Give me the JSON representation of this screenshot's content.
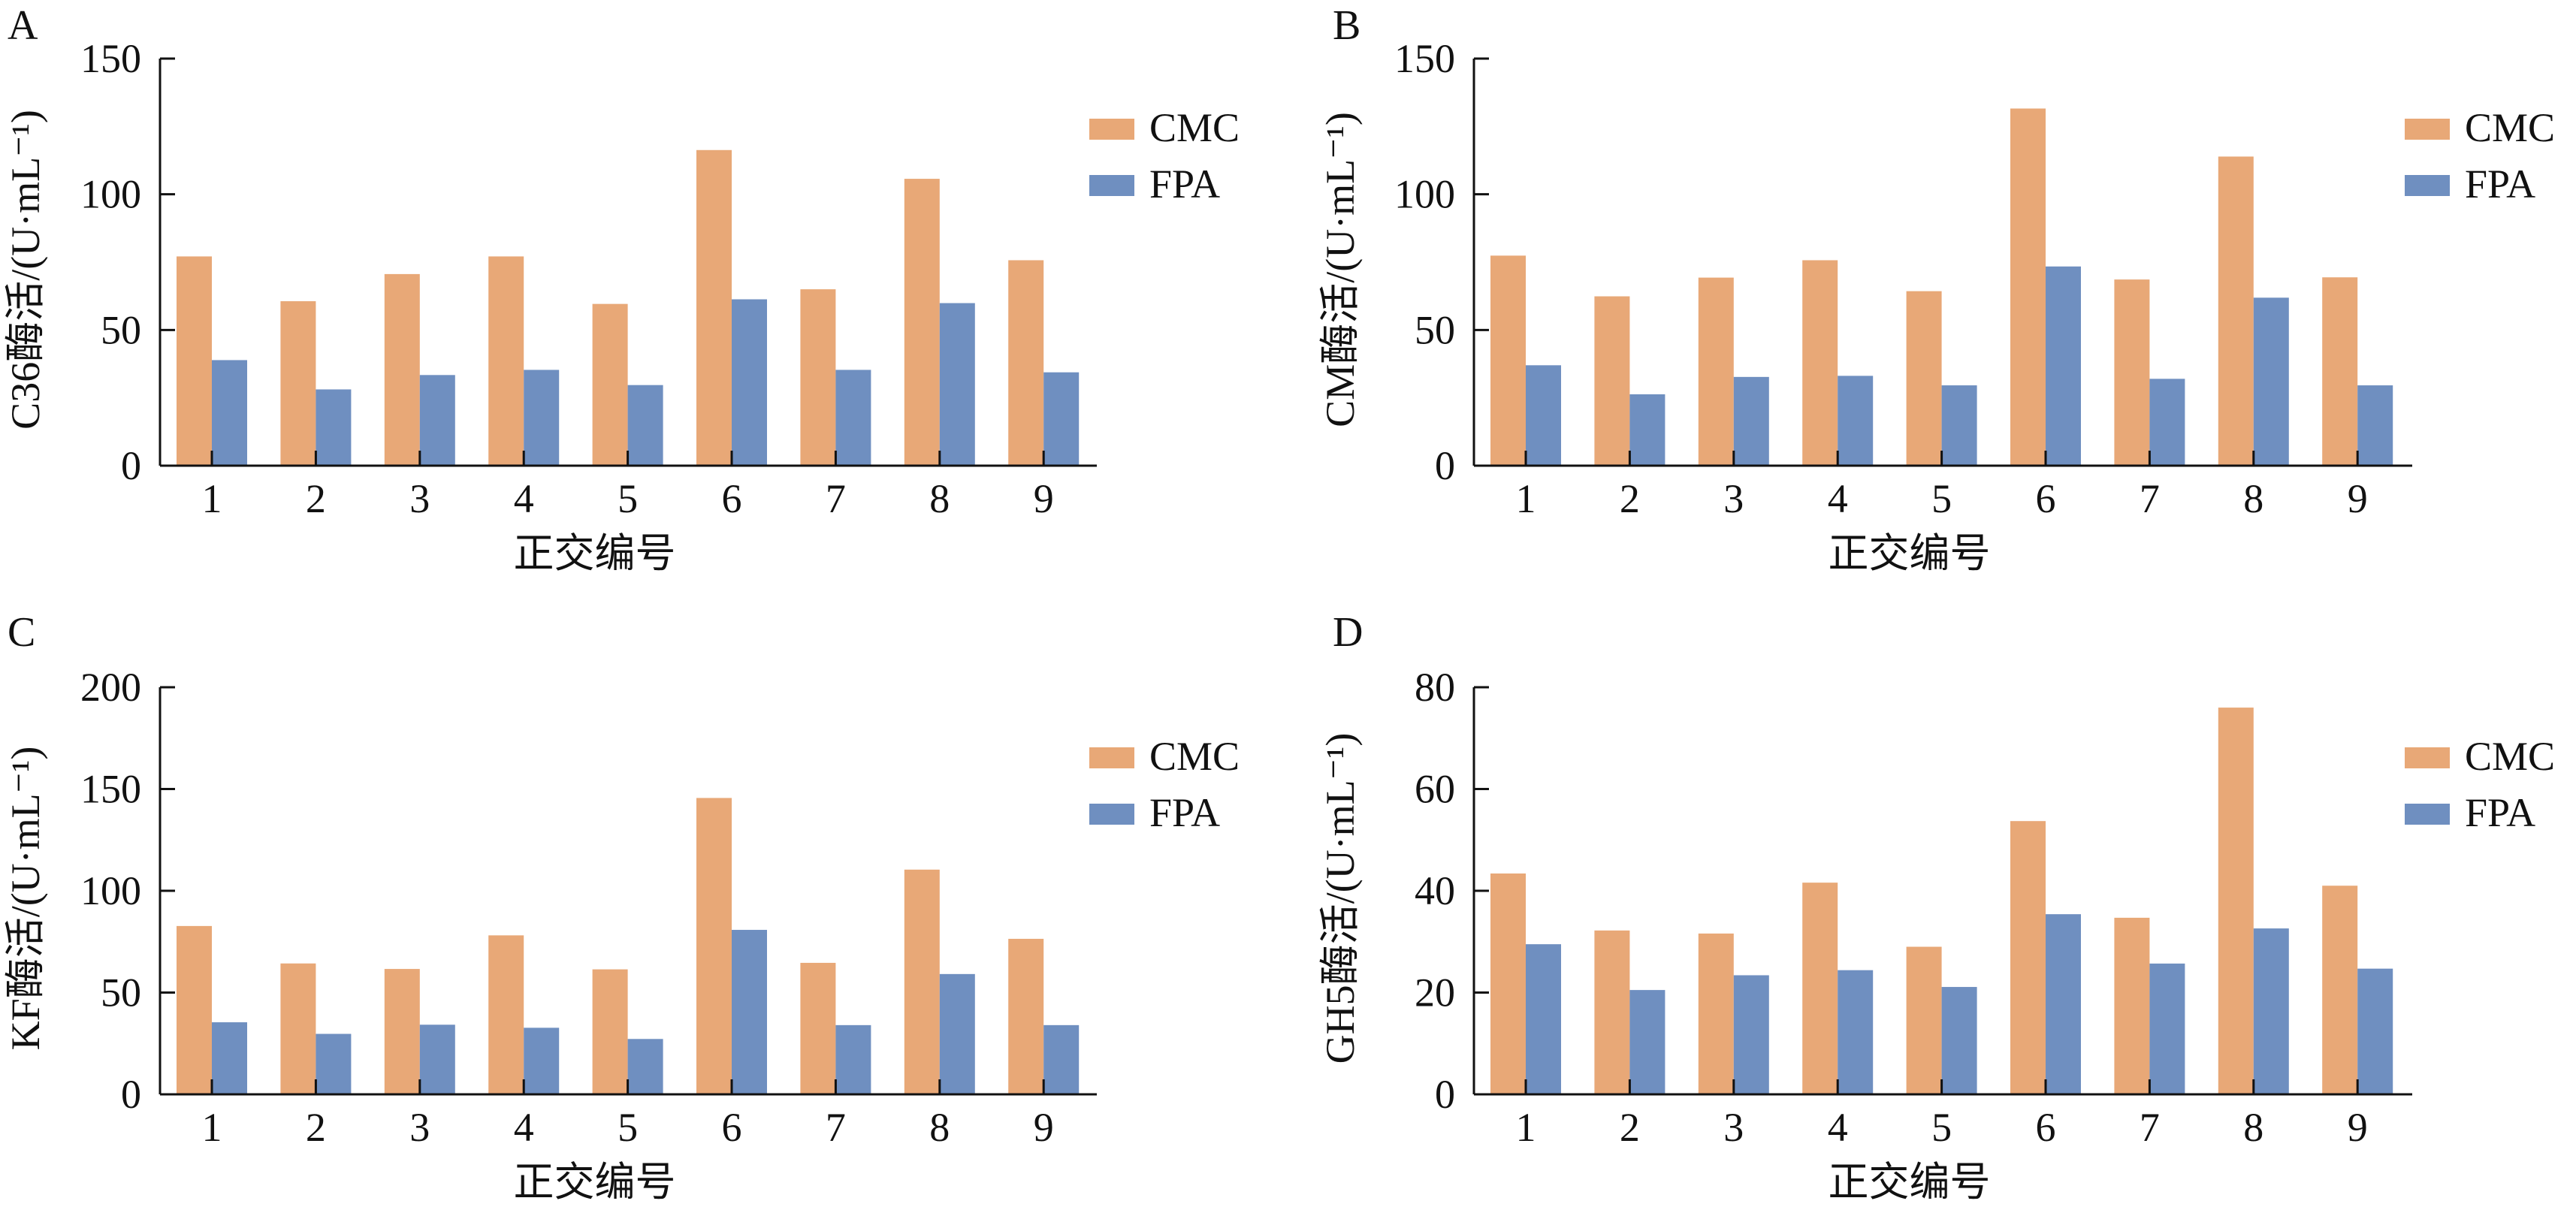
{
  "colors": {
    "CMC": "#E8A877",
    "FPA": "#6F8FC0",
    "axis": "#111111"
  },
  "chart_data": [
    {
      "type": "bar",
      "panel": "A",
      "title": "",
      "xlabel": "正交编号",
      "ylabel": "C36酶活/(U·mL⁻¹)",
      "ylim": [
        0,
        150
      ],
      "yticks": [
        0,
        50,
        100,
        150
      ],
      "categories": [
        "1",
        "2",
        "3",
        "4",
        "5",
        "6",
        "7",
        "8",
        "9"
      ],
      "legend": "right",
      "series": [
        {
          "name": "CMC",
          "values": [
            77.1,
            60.6,
            70.6,
            77.1,
            59.6,
            116.3,
            65.0,
            105.7,
            75.7
          ]
        },
        {
          "name": "FPA",
          "values": [
            38.9,
            28.1,
            33.4,
            35.3,
            29.7,
            61.3,
            35.3,
            59.9,
            34.4
          ]
        }
      ]
    },
    {
      "type": "bar",
      "panel": "B",
      "title": "",
      "xlabel": "正交编号",
      "ylabel": "CM酶活/(U·mL⁻¹)",
      "ylim": [
        0,
        150
      ],
      "yticks": [
        0,
        50,
        100,
        150
      ],
      "categories": [
        "1",
        "2",
        "3",
        "4",
        "5",
        "6",
        "7",
        "8",
        "9"
      ],
      "legend": "right",
      "series": [
        {
          "name": "CMC",
          "values": [
            77.4,
            62.4,
            69.3,
            75.7,
            64.3,
            131.6,
            68.6,
            113.9,
            69.4
          ]
        },
        {
          "name": "FPA",
          "values": [
            37.0,
            26.3,
            32.7,
            33.1,
            29.6,
            73.4,
            32.0,
            61.9,
            29.6
          ]
        }
      ]
    },
    {
      "type": "bar",
      "panel": "C",
      "title": "",
      "xlabel": "正交编号",
      "ylabel": "KF酶活/(U·mL⁻¹)",
      "ylim": [
        0,
        200
      ],
      "yticks": [
        0,
        50,
        100,
        150,
        200
      ],
      "categories": [
        "1",
        "2",
        "3",
        "4",
        "5",
        "6",
        "7",
        "8",
        "9"
      ],
      "legend": "right",
      "series": [
        {
          "name": "CMC",
          "values": [
            82.7,
            64.3,
            61.6,
            78.1,
            61.4,
            145.6,
            64.6,
            110.4,
            76.4
          ]
        },
        {
          "name": "FPA",
          "values": [
            35.4,
            29.7,
            34.2,
            32.7,
            27.2,
            80.8,
            34.0,
            59.1,
            34.0
          ]
        }
      ]
    },
    {
      "type": "bar",
      "panel": "D",
      "title": "",
      "xlabel": "正交编号",
      "ylabel": "GH5酶活/(U·mL⁻¹)",
      "ylim": [
        0,
        80
      ],
      "yticks": [
        0,
        20,
        40,
        60,
        80
      ],
      "categories": [
        "1",
        "2",
        "3",
        "4",
        "5",
        "6",
        "7",
        "8",
        "9"
      ],
      "legend": "right",
      "series": [
        {
          "name": "CMC",
          "values": [
            43.4,
            32.2,
            31.6,
            41.6,
            29.0,
            53.7,
            34.7,
            76.0,
            41.0
          ]
        },
        {
          "name": "FPA",
          "values": [
            29.5,
            20.5,
            23.4,
            24.4,
            21.1,
            35.4,
            25.7,
            32.6,
            24.7
          ]
        }
      ]
    }
  ]
}
